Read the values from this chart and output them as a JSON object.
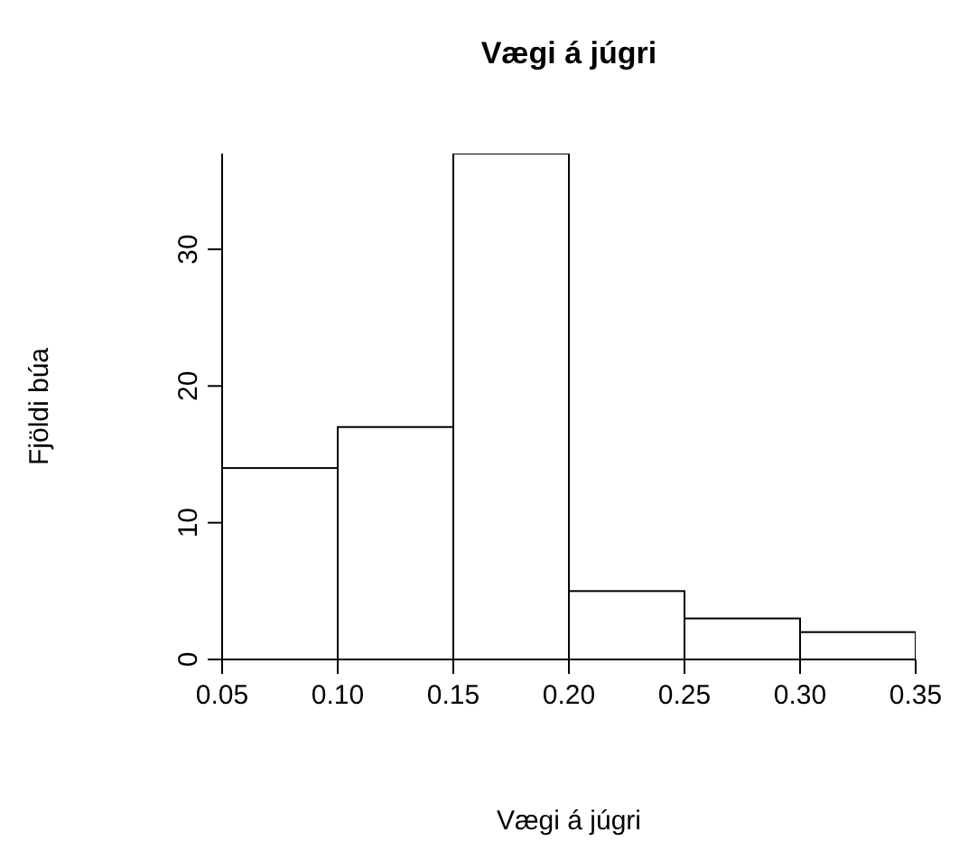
{
  "chart_data": {
    "type": "histogram",
    "title": "Vægi á júgri",
    "xlabel": "Vægi á júgri",
    "ylabel": "Fjöldi búa",
    "bins": [
      0.05,
      0.1,
      0.15,
      0.2,
      0.25,
      0.3,
      0.35
    ],
    "values": [
      14,
      17,
      37,
      5,
      3,
      2
    ],
    "color": "#ffffff",
    "xlim": [
      0.05,
      0.35
    ],
    "xticks": [
      0.05,
      {
        "value": 0.1,
        "label": "0.10"
      },
      0.15,
      {
        "value": 0.2,
        "label": "0.20"
      },
      0.25,
      {
        "value": 0.3,
        "label": "0.30"
      },
      0.35
    ],
    "ylim": [
      0,
      37
    ],
    "yticks": [
      0,
      10,
      20,
      30
    ],
    "grid": false
  }
}
